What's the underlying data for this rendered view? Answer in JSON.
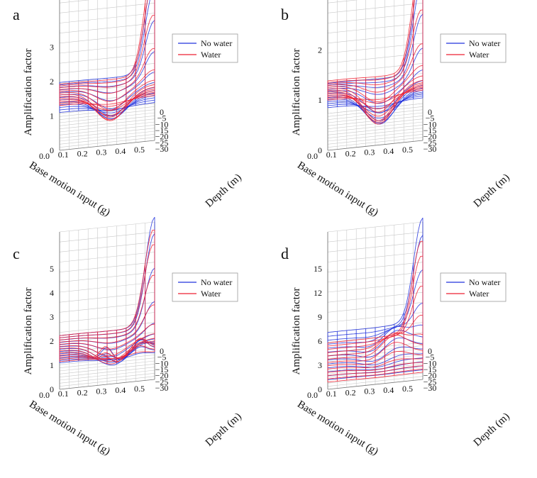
{
  "chart_data": [
    {
      "panel": "a",
      "type": "surface3d",
      "xlabel": "Base motion input (g)",
      "ylabel": "Depth (m)",
      "zlabel": "Amplification factor",
      "x_ticks": [
        "0.0",
        "0.1",
        "0.2",
        "0.3",
        "0.4",
        "0.5"
      ],
      "y_ticks": [
        "0",
        "−5",
        "−10",
        "−15",
        "−20",
        "−25",
        "−30"
      ],
      "z_ticks": [
        "0",
        "1",
        "2",
        "3"
      ],
      "zlim": [
        0,
        3.5
      ],
      "legend": [
        "No water",
        "Water"
      ],
      "series": [
        {
          "name": "No water",
          "color": "#2233dd",
          "near_edge_base": 1.1,
          "far_edge_base": 0.9,
          "surface_min": 0.3,
          "peak": 2.9
        },
        {
          "name": "Water",
          "color": "#ee2233",
          "near_edge_base": 1.3,
          "far_edge_base": 0.85,
          "surface_min": 0.25,
          "peak": 3.2
        }
      ]
    },
    {
      "panel": "b",
      "type": "surface3d",
      "xlabel": "Base motion input (g)",
      "ylabel": "Depth (m)",
      "zlabel": "Amplification factor",
      "x_ticks": [
        "0.0",
        "0.1",
        "0.2",
        "0.3",
        "0.4",
        "0.5"
      ],
      "y_ticks": [
        "0",
        "−5",
        "−10",
        "−15",
        "−20",
        "−25",
        "−30"
      ],
      "z_ticks": [
        "0",
        "1",
        "2"
      ],
      "zlim": [
        0,
        2.4
      ],
      "legend": [
        "No water",
        "Water"
      ],
      "series": [
        {
          "name": "No water",
          "color": "#2233dd",
          "near_edge_base": 0.85,
          "far_edge_base": 0.6,
          "surface_min": 0.1,
          "peak": 2.2
        },
        {
          "name": "Water",
          "color": "#ee2233",
          "near_edge_base": 1.0,
          "far_edge_base": 0.65,
          "surface_min": 0.1,
          "peak": 2.25
        }
      ]
    },
    {
      "panel": "c",
      "type": "surface3d",
      "xlabel": "Base motion input (g)",
      "ylabel": "Depth (m)",
      "zlabel": "Amplification factor",
      "x_ticks": [
        "0.0",
        "0.1",
        "0.2",
        "0.3",
        "0.4",
        "0.5"
      ],
      "y_ticks": [
        "0",
        "−5",
        "−10",
        "−15",
        "−20",
        "−25",
        "−30"
      ],
      "z_ticks": [
        "0",
        "1",
        "2",
        "3",
        "4",
        "5"
      ],
      "zlim": [
        0,
        5
      ],
      "legend": [
        "No water",
        "Water"
      ],
      "series": [
        {
          "name": "No water",
          "color": "#2233dd",
          "near_edge_base": 1.1,
          "far_edge_base": 0.7,
          "surface_min": 0.1,
          "peak": 4.5
        },
        {
          "name": "Water",
          "color": "#ee2233",
          "near_edge_base": 1.15,
          "far_edge_base": 0.7,
          "surface_min": 0.15,
          "peak": 4.0
        }
      ]
    },
    {
      "panel": "d",
      "type": "surface3d",
      "xlabel": "Base motion input (g)",
      "ylabel": "Depth (m)",
      "zlabel": "Amplification factor",
      "x_ticks": [
        "0.0",
        "0.1",
        "0.2",
        "0.3",
        "0.4",
        "0.5"
      ],
      "y_ticks": [
        "0",
        "−5",
        "−10",
        "−15",
        "−20",
        "−25",
        "−30"
      ],
      "z_ticks": [
        "0",
        "3",
        "6",
        "9",
        "12",
        "15"
      ],
      "zlim": [
        0,
        15
      ],
      "legend": [
        "No water",
        "Water"
      ],
      "series": [
        {
          "name": "No water",
          "color": "#2233dd",
          "near_edge_base": 1.2,
          "far_edge_base": 2.5,
          "surface_min": 0.5,
          "peak": 13.0
        },
        {
          "name": "Water",
          "color": "#ee2233",
          "near_edge_base": 0.9,
          "far_edge_base": 1.2,
          "surface_min": 0.3,
          "peak": 11.5
        }
      ]
    }
  ]
}
